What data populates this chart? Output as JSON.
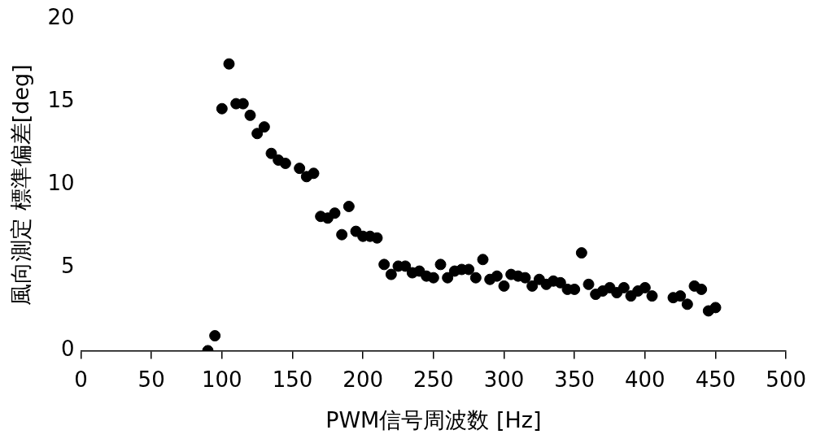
{
  "chart_data": {
    "type": "scatter",
    "xlabel": "PWM信号周波数 [Hz]",
    "ylabel": "風向測定 標準偏差[deg]",
    "x": [
      90,
      95,
      100,
      105,
      110,
      115,
      120,
      125,
      130,
      135,
      140,
      145,
      155,
      160,
      165,
      170,
      175,
      180,
      185,
      190,
      195,
      200,
      205,
      210,
      215,
      220,
      225,
      230,
      235,
      240,
      245,
      250,
      255,
      260,
      265,
      270,
      275,
      280,
      285,
      290,
      295,
      300,
      305,
      310,
      315,
      320,
      325,
      330,
      335,
      340,
      345,
      350,
      355,
      360,
      365,
      370,
      375,
      380,
      385,
      390,
      395,
      400,
      405,
      420,
      425,
      430,
      435,
      440,
      445,
      450
    ],
    "series": [
      {
        "color": "#000000",
        "values": [
          0,
          0.9,
          14.6,
          17.3,
          14.9,
          14.9,
          14.2,
          13.1,
          13.5,
          11.9,
          11.5,
          11.3,
          11.0,
          10.5,
          10.7,
          8.1,
          8.0,
          8.3,
          7.0,
          8.7,
          7.2,
          6.9,
          6.9,
          6.8,
          5.2,
          4.6,
          5.1,
          5.1,
          4.7,
          4.8,
          4.5,
          4.4,
          5.2,
          4.4,
          4.8,
          4.9,
          4.9,
          4.4,
          5.5,
          4.3,
          4.5,
          3.9,
          4.6,
          4.5,
          4.4,
          3.9,
          4.3,
          4.0,
          4.2,
          4.1,
          3.7,
          3.7,
          5.9,
          4.0,
          3.4,
          3.6,
          3.8,
          3.5,
          3.8,
          3.3,
          3.6,
          3.8,
          3.3,
          3.2,
          3.3,
          2.8,
          3.9,
          3.7,
          2.4,
          2.6
        ]
      }
    ],
    "xlim": [
      0,
      500
    ],
    "xticks": [
      0,
      50,
      100,
      150,
      200,
      250,
      300,
      350,
      400,
      450,
      500
    ],
    "ylim": [
      0,
      20
    ],
    "yticks": [
      0,
      5,
      10,
      15,
      20
    ],
    "grid": false,
    "legend": false,
    "marker": "circle"
  }
}
